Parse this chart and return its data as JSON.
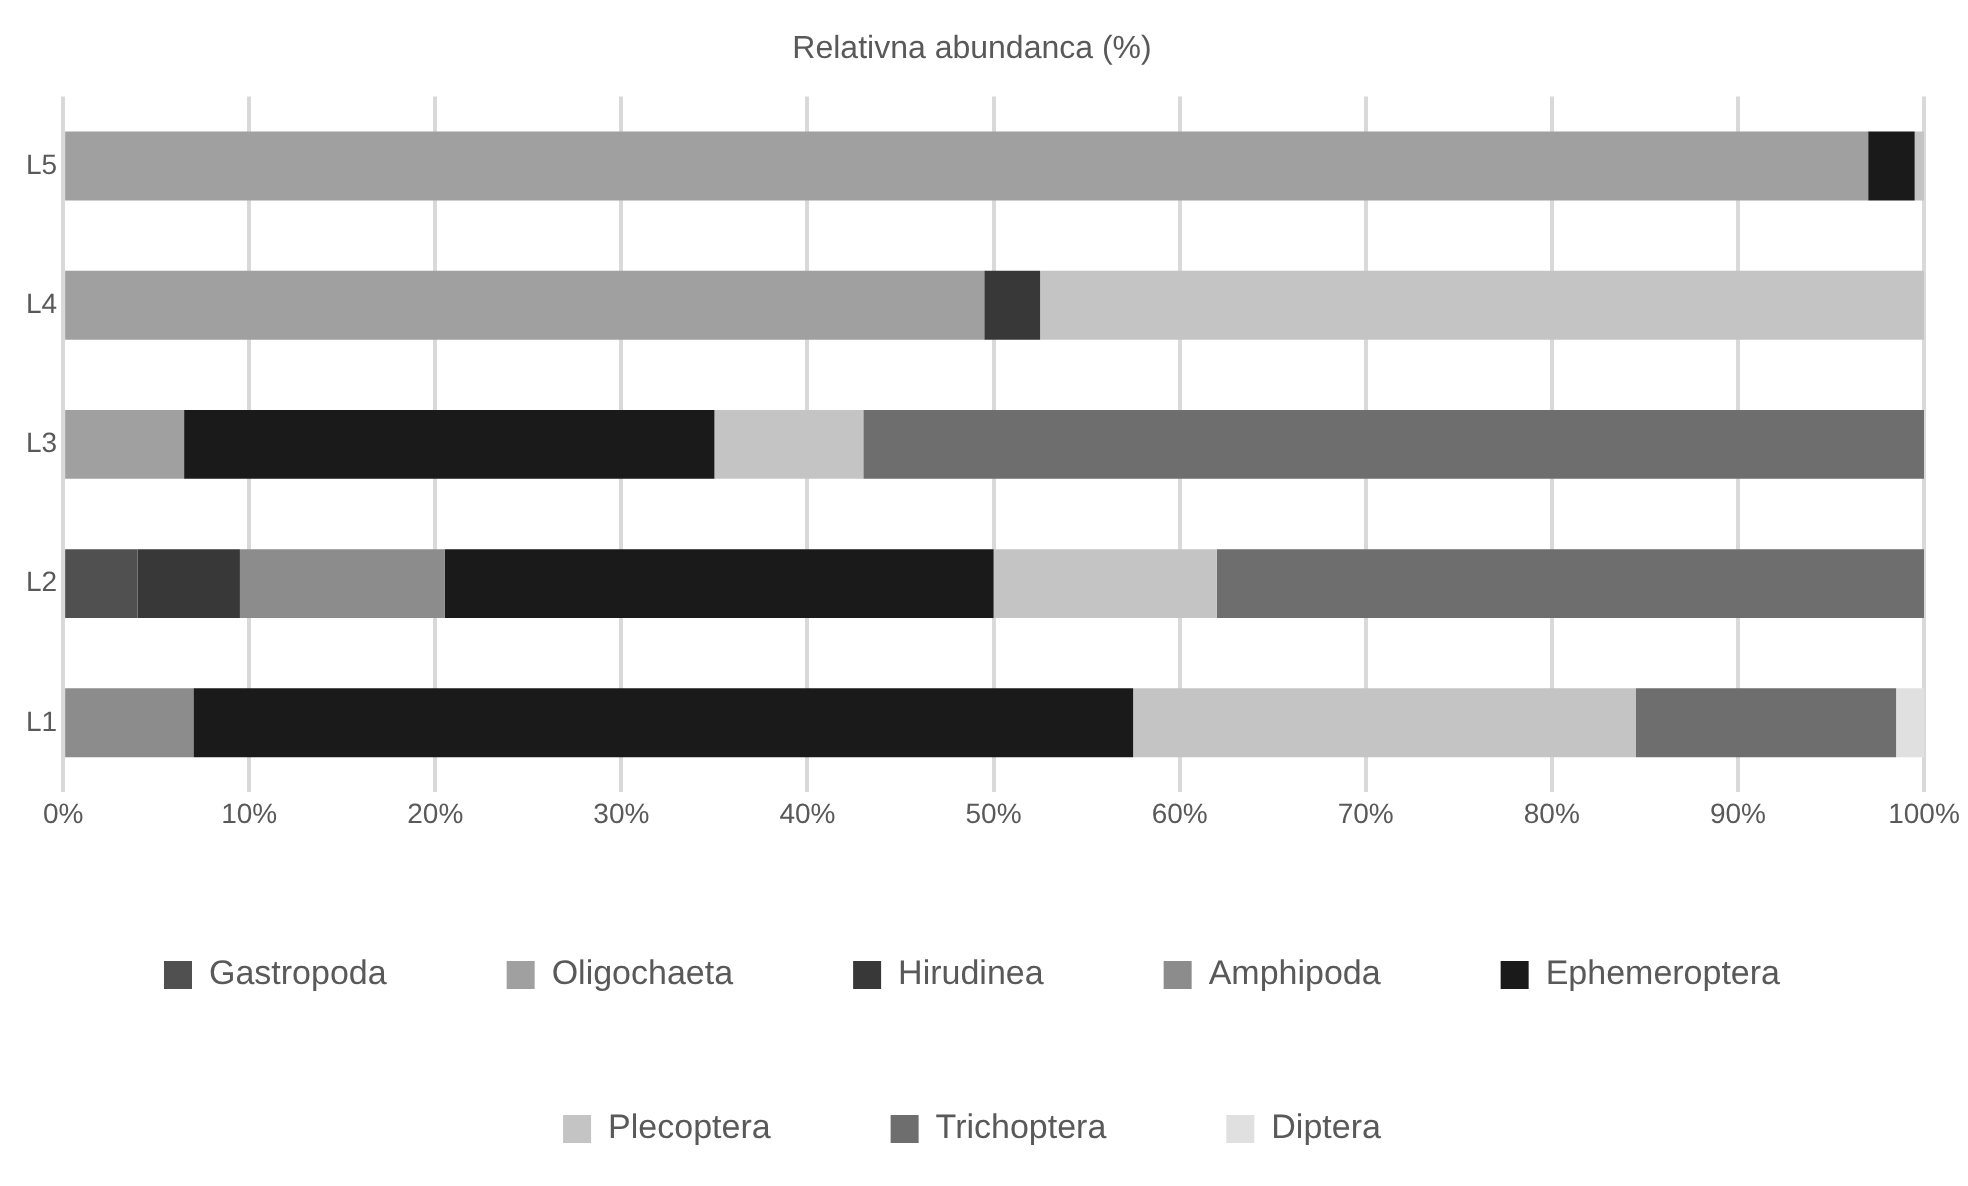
{
  "chart_data": {
    "type": "bar",
    "orientation": "horizontal",
    "stacked": true,
    "title": "Relativna abundanca (%)",
    "categories": [
      "L5",
      "L4",
      "L3",
      "L2",
      "L1"
    ],
    "series": [
      {
        "name": "Gastropoda",
        "color": "#505050",
        "values": [
          null,
          null,
          null,
          4,
          null
        ]
      },
      {
        "name": "Oligochaeta",
        "color": "#a0a0a0",
        "values": [
          97,
          49.5,
          6.5,
          null,
          null
        ]
      },
      {
        "name": "Hirudinea",
        "color": "#383838",
        "values": [
          null,
          3,
          null,
          5.5,
          null
        ]
      },
      {
        "name": "Amphipoda",
        "color": "#8c8c8c",
        "values": [
          null,
          null,
          null,
          11,
          7
        ]
      },
      {
        "name": "Ephemeroptera",
        "color": "#1a1a1a",
        "values": [
          2.5,
          null,
          28.5,
          29.5,
          50.5
        ]
      },
      {
        "name": "Plecoptera",
        "color": "#c4c4c4",
        "values": [
          0.5,
          47.5,
          8,
          12,
          27
        ]
      },
      {
        "name": "Trichoptera",
        "color": "#6e6e6e",
        "values": [
          null,
          null,
          57,
          38,
          14
        ]
      },
      {
        "name": "Diptera",
        "color": "#e0e0e0",
        "values": [
          null,
          null,
          null,
          null,
          1.5
        ]
      }
    ],
    "xlim": [
      0,
      100
    ],
    "xticks": [
      {
        "value": 0,
        "label": "0%"
      },
      {
        "value": 10,
        "label": "10%"
      },
      {
        "value": 20,
        "label": "20%"
      },
      {
        "value": 30,
        "label": "30%"
      },
      {
        "value": 40,
        "label": "40%"
      },
      {
        "value": 50,
        "label": "50%"
      },
      {
        "value": 60,
        "label": "60%"
      },
      {
        "value": 70,
        "label": "70%"
      },
      {
        "value": 80,
        "label": "80%"
      },
      {
        "value": 90,
        "label": "90%"
      },
      {
        "value": 100,
        "label": "100%"
      }
    ],
    "grid": "x",
    "legend": "bottom"
  }
}
